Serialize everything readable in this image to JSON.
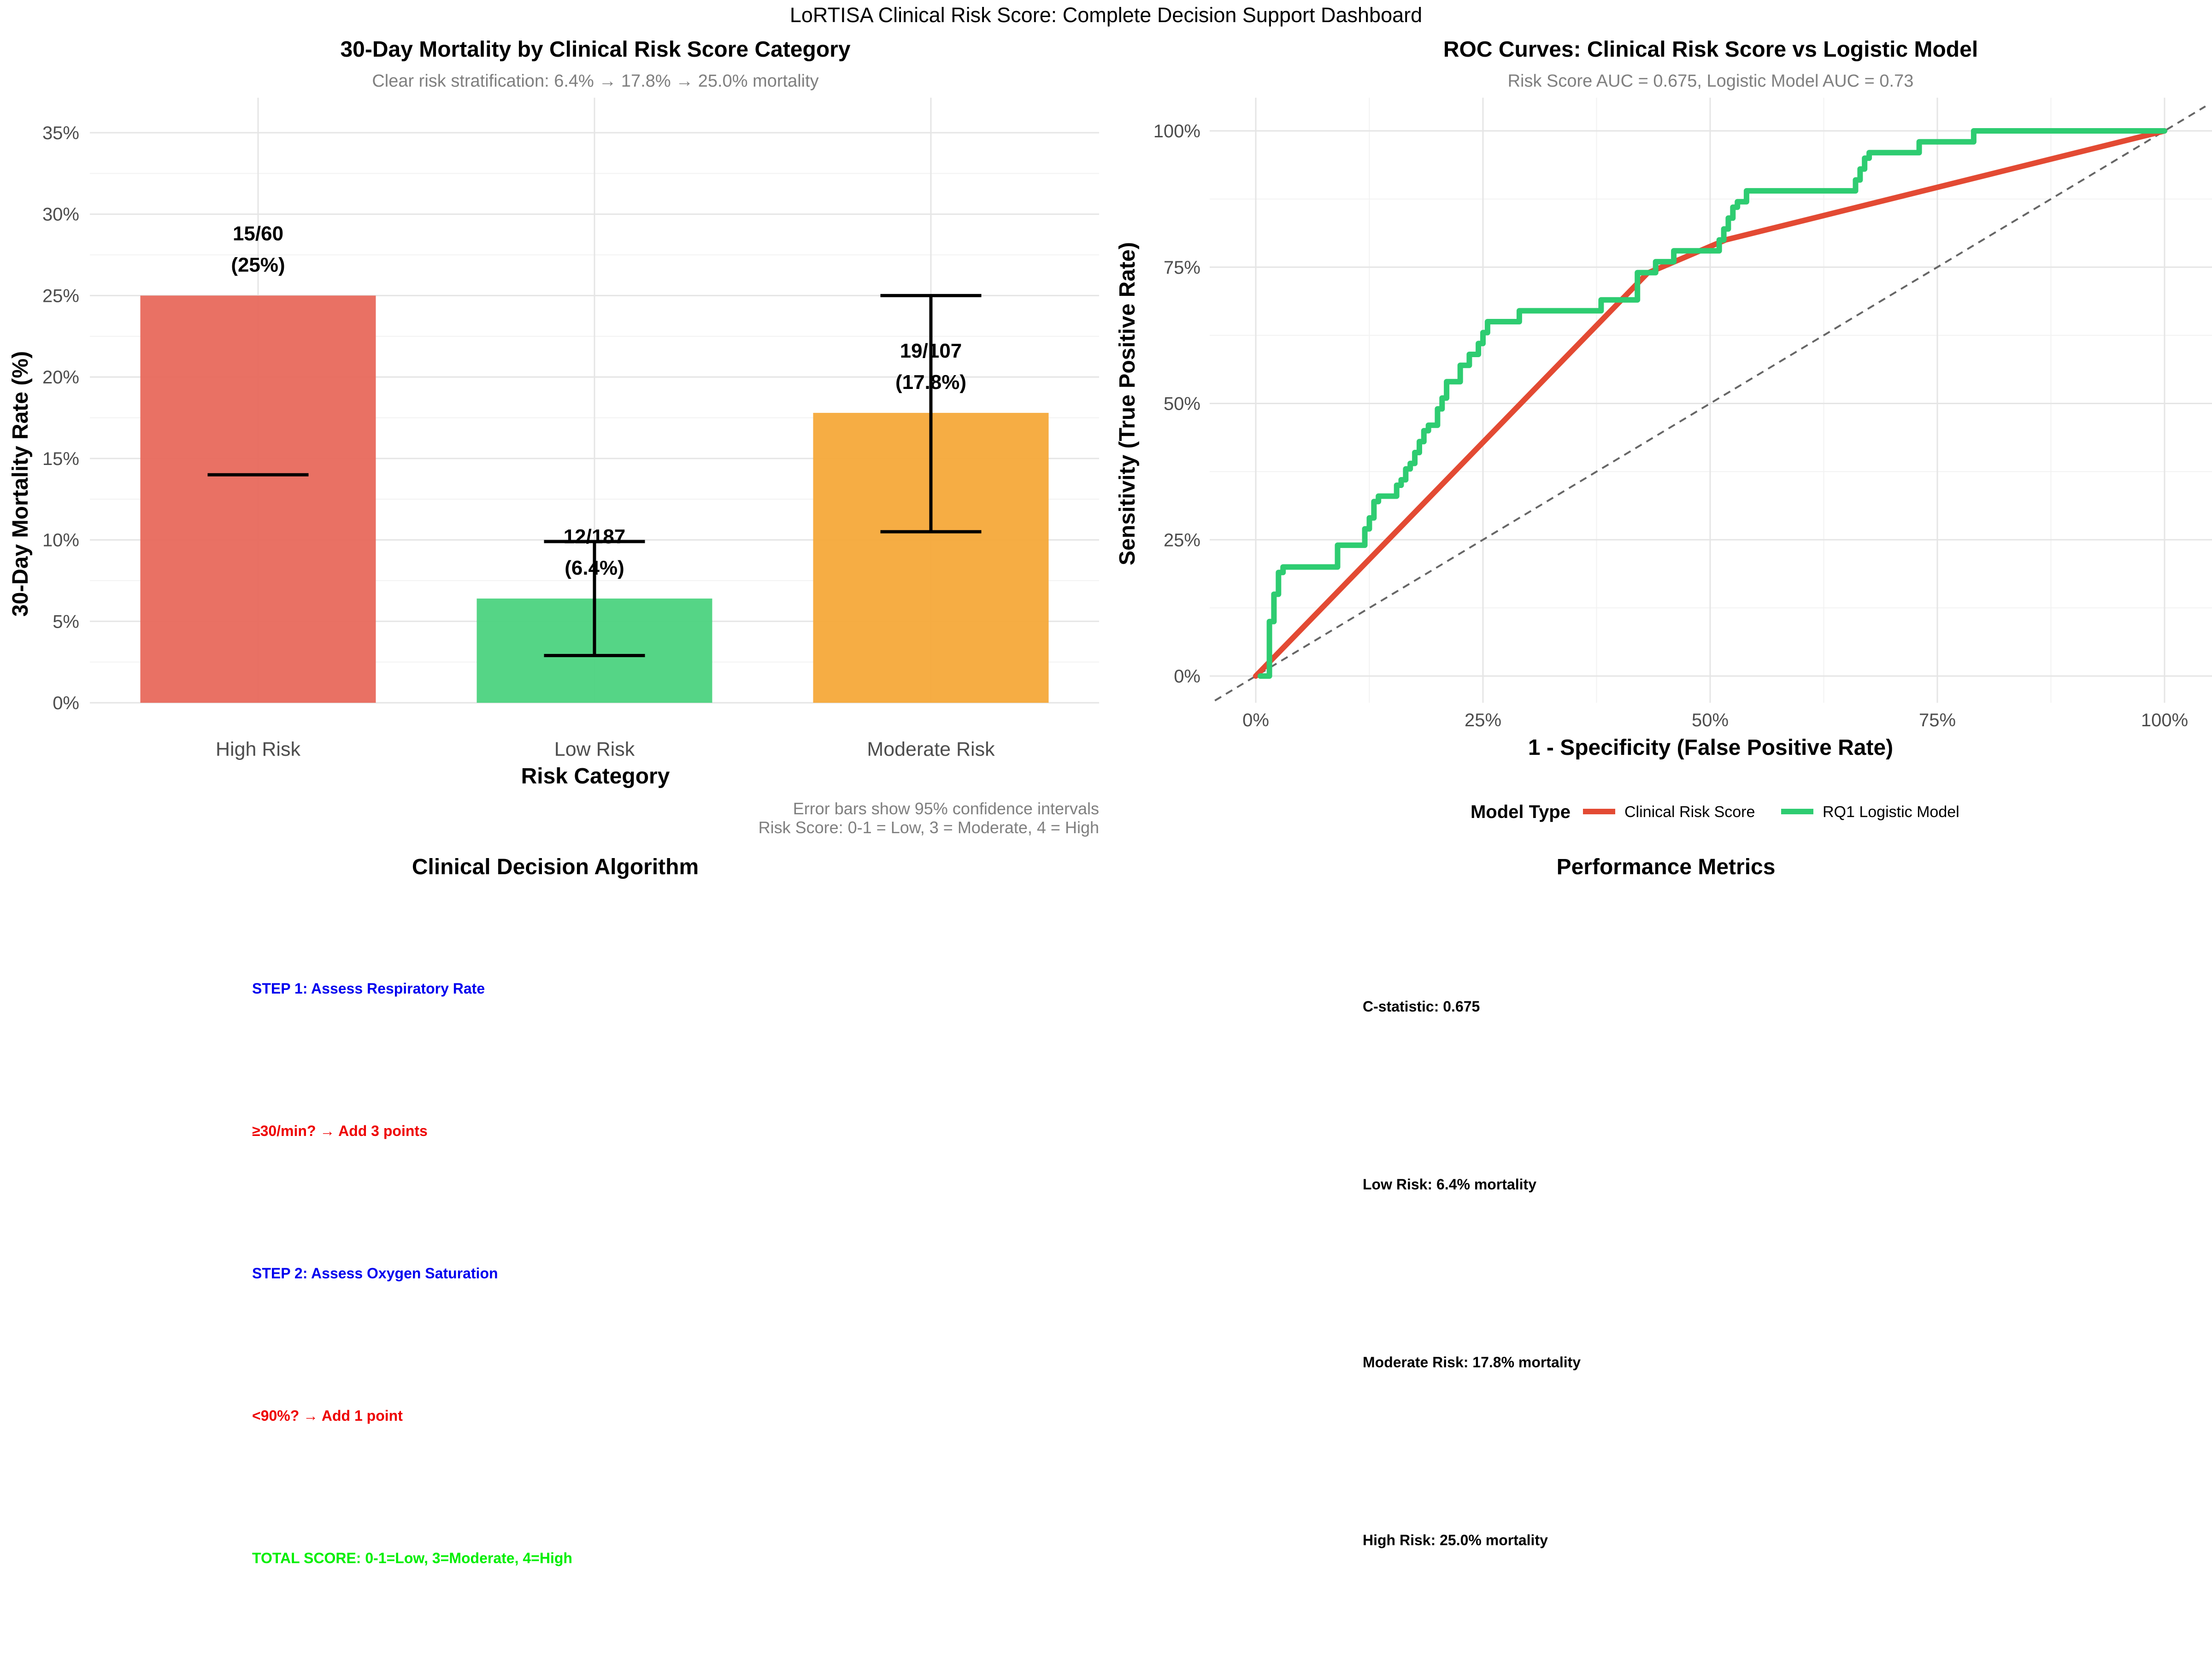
{
  "dashboard": {
    "title": "LoRTISA Clinical Risk Score: Complete Decision Support Dashboard"
  },
  "chart_data": [
    {
      "type": "bar",
      "title": "30-Day Mortality by Clinical Risk Score Category",
      "subtitle": "Clear risk stratification: 6.4% → 17.8% → 25.0% mortality",
      "xlabel": "Risk Category",
      "ylabel": "30-Day Mortality Rate (%)",
      "ylim": [
        0,
        35
      ],
      "yticks": [
        0,
        5,
        10,
        15,
        20,
        25,
        30,
        35
      ],
      "ytick_labels": [
        "0%",
        "5%",
        "10%",
        "15%",
        "20%",
        "25%",
        "30%",
        "35%"
      ],
      "categories": [
        "High Risk",
        "Low Risk",
        "Moderate Risk"
      ],
      "values": [
        25.0,
        6.4,
        17.8
      ],
      "ci_lower": [
        14.0,
        2.9,
        10.5
      ],
      "ci_upper": [
        null,
        9.9,
        25.0
      ],
      "data_labels": [
        [
          "15/60",
          "(25%)"
        ],
        [
          "12/187",
          "(6.4%)"
        ],
        [
          "19/107",
          "(17.8%)"
        ]
      ],
      "colors": [
        "#E8695C",
        "#4CD37F",
        "#F5A93A"
      ],
      "caption": [
        "Error bars show 95% confidence intervals",
        "Risk Score: 0-1 = Low, 3 = Moderate, 4 = High"
      ],
      "grid": true
    },
    {
      "type": "line",
      "title": "ROC Curves: Clinical Risk Score vs Logistic Model",
      "subtitle": "Risk Score AUC = 0.675, Logistic Model AUC = 0.73",
      "xlabel": "1 - Specificity (False Positive Rate)",
      "ylabel": "Sensitivity (True Positive Rate)",
      "xlim": [
        -0.045,
        1.045
      ],
      "ylim": [
        -0.045,
        1.045
      ],
      "xticks": [
        0,
        0.25,
        0.5,
        0.75,
        1
      ],
      "xtick_labels": [
        "0%",
        "25%",
        "50%",
        "75%",
        "100%"
      ],
      "yticks": [
        0,
        0.25,
        0.5,
        0.75,
        1
      ],
      "ytick_labels": [
        "0%",
        "25%",
        "50%",
        "75%",
        "100%"
      ],
      "legend_title": "Model Type",
      "legend_position": "bottom",
      "grid": true,
      "reference_line": {
        "x": [
          -0.045,
          1.045
        ],
        "y": [
          -0.045,
          1.045
        ],
        "style": "dashed",
        "color": "#666666"
      },
      "series": [
        {
          "name": "Clinical Risk Score",
          "color": "#E34A33",
          "x": [
            0,
            0.431,
            0.517,
            1
          ],
          "y": [
            0,
            0.739,
            0.8,
            1
          ]
        },
        {
          "name": "RQ1 Logistic Model",
          "color": "#2ECC71",
          "x": [
            0.005,
            0.015,
            0.015,
            0.02,
            0.02,
            0.025,
            0.025,
            0.03,
            0.03,
            0.09,
            0.09,
            0.095,
            0.095,
            0.12,
            0.12,
            0.125,
            0.125,
            0.13,
            0.13,
            0.135,
            0.135,
            0.14,
            0.14,
            0.155,
            0.155,
            0.16,
            0.16,
            0.165,
            0.165,
            0.17,
            0.17,
            0.175,
            0.175,
            0.18,
            0.18,
            0.185,
            0.185,
            0.19,
            0.19,
            0.2,
            0.2,
            0.205,
            0.205,
            0.21,
            0.21,
            0.225,
            0.225,
            0.235,
            0.235,
            0.245,
            0.245,
            0.25,
            0.25,
            0.255,
            0.255,
            0.29,
            0.29,
            0.38,
            0.38,
            0.42,
            0.42,
            0.44,
            0.44,
            0.46,
            0.46,
            0.51,
            0.51,
            0.515,
            0.515,
            0.52,
            0.52,
            0.525,
            0.525,
            0.53,
            0.53,
            0.54,
            0.54,
            0.66,
            0.66,
            0.665,
            0.665,
            0.67,
            0.67,
            0.675,
            0.675,
            0.73,
            0.73,
            0.79,
            0.79,
            1.0
          ],
          "y": [
            0,
            0,
            0.1,
            0.1,
            0.15,
            0.15,
            0.19,
            0.19,
            0.2,
            0.2,
            0.24,
            0.24,
            0.24,
            0.24,
            0.27,
            0.27,
            0.29,
            0.29,
            0.32,
            0.32,
            0.33,
            0.33,
            0.33,
            0.33,
            0.35,
            0.35,
            0.36,
            0.36,
            0.38,
            0.38,
            0.39,
            0.39,
            0.41,
            0.41,
            0.43,
            0.43,
            0.45,
            0.45,
            0.46,
            0.46,
            0.49,
            0.49,
            0.51,
            0.51,
            0.54,
            0.54,
            0.57,
            0.57,
            0.59,
            0.59,
            0.61,
            0.61,
            0.63,
            0.63,
            0.65,
            0.65,
            0.67,
            0.67,
            0.69,
            0.69,
            0.74,
            0.74,
            0.76,
            0.76,
            0.78,
            0.78,
            0.8,
            0.8,
            0.82,
            0.82,
            0.84,
            0.84,
            0.86,
            0.86,
            0.87,
            0.87,
            0.89,
            0.89,
            0.91,
            0.91,
            0.93,
            0.93,
            0.95,
            0.95,
            0.96,
            0.96,
            0.98,
            0.98,
            1.0,
            1.0
          ]
        }
      ]
    }
  ],
  "algorithm_panel": {
    "title": "Clinical Decision Algorithm",
    "steps": [
      {
        "text": "STEP 1: Assess Respiratory Rate",
        "color": "#0000EE"
      },
      {
        "text": "≥30/min? → Add 3 points",
        "color": "#EE0000"
      },
      {
        "text": "STEP 2: Assess Oxygen Saturation",
        "color": "#0000EE"
      },
      {
        "text": "<90%? → Add 1 point",
        "color": "#EE0000"
      },
      {
        "text": "TOTAL SCORE: 0-1=Low, 3=Moderate, 4=High",
        "color": "#00EE00"
      }
    ]
  },
  "metrics_panel": {
    "title": "Performance Metrics",
    "items": [
      "C-statistic: 0.675",
      "Low Risk: 6.4% mortality",
      "Moderate Risk: 17.8% mortality",
      "High Risk: 25.0% mortality"
    ]
  }
}
